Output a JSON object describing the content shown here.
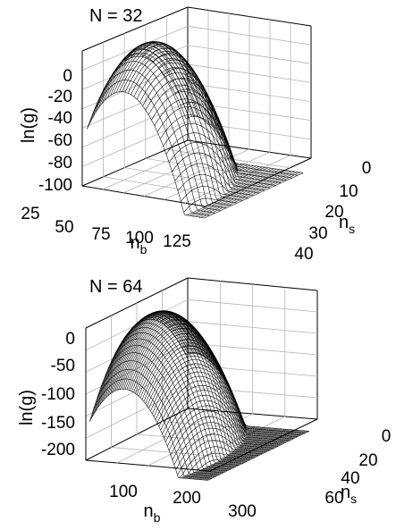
{
  "chart_data": [
    {
      "type": "surface",
      "annotation": "N = 32",
      "zlabel": "ln(g)",
      "xlabel_base": "n",
      "xlabel_sub": "b",
      "ylabel_base": "n",
      "ylabel_sub": "s",
      "x_ticks": [
        "25",
        "50",
        "75",
        "100",
        "125"
      ],
      "y_ticks": [
        "0",
        "10",
        "20",
        "30",
        "40"
      ],
      "z_ticks": [
        "0",
        "-20",
        "-40",
        "-60",
        "-80",
        "-100"
      ],
      "xlim": [
        0,
        130
      ],
      "ylim": [
        0,
        45
      ],
      "zlim": [
        -110,
        15
      ],
      "grid": true,
      "surface": {
        "peak_nb": 32,
        "peak_ns": 16,
        "peak_lng": 12,
        "edge_lng": -105
      }
    },
    {
      "type": "surface",
      "annotation": "N = 64",
      "zlabel": "ln(g)",
      "xlabel_base": "n",
      "xlabel_sub": "b",
      "ylabel_base": "n",
      "ylabel_sub": "s",
      "x_ticks": [
        "100",
        "200",
        "300"
      ],
      "y_ticks": [
        "0",
        "20",
        "40",
        "60"
      ],
      "z_ticks": [
        "0",
        "-50",
        "-100",
        "-150",
        "-200"
      ],
      "xlim": [
        0,
        320
      ],
      "ylim": [
        0,
        70
      ],
      "zlim": [
        -230,
        40
      ],
      "grid": true,
      "surface": {
        "peak_nb": 64,
        "peak_ns": 32,
        "peak_lng": 28,
        "edge_lng": -215
      }
    }
  ]
}
